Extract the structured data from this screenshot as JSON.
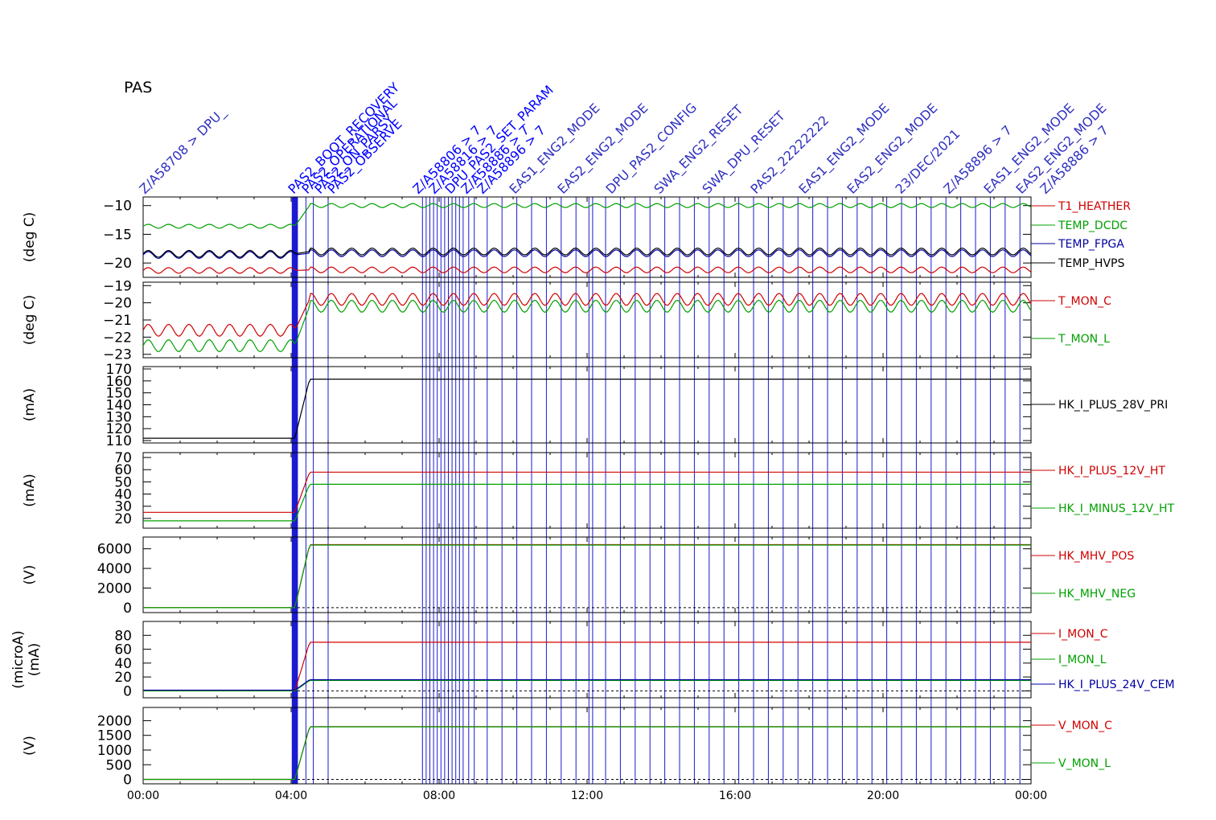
{
  "title": "PAS",
  "chart_data": [
    {
      "type": "line",
      "ylabel": "(deg C)",
      "ylim": [
        -22.5,
        -8.5
      ],
      "yticks": [
        -10,
        -15,
        -20
      ],
      "ytick_labels": [
        "−10",
        "−15",
        "−20"
      ],
      "xlim": [
        0,
        24
      ],
      "series": [
        {
          "name": "T1_HEATHER",
          "color": "#d00000",
          "pre": -21.3,
          "post": -21.2,
          "amp": 0.5
        },
        {
          "name": "TEMP_DCDC",
          "color": "#00a000",
          "pre": -13.6,
          "post": -10.0,
          "amp": 0.35
        },
        {
          "name": "TEMP_FPGA",
          "color": "#0000a0",
          "pre": -18.6,
          "post": -18.3,
          "amp": 0.6
        },
        {
          "name": "TEMP_HVPS",
          "color": "#000000",
          "pre": -18.4,
          "post": -18.0,
          "amp": 0.6
        }
      ]
    },
    {
      "type": "line",
      "ylabel": "(deg C)",
      "ylim": [
        -23.2,
        -18.8
      ],
      "yticks": [
        -19,
        -20,
        -21,
        -22,
        -23
      ],
      "ytick_labels": [
        "−19",
        "−20",
        "−21",
        "−22",
        "−23"
      ],
      "xlim": [
        0,
        24
      ],
      "series": [
        {
          "name": "T_MON_C",
          "color": "#d00000",
          "pre": -21.6,
          "post": -19.8,
          "amp": 0.35
        },
        {
          "name": "T_MON_L",
          "color": "#00a000",
          "pre": -22.5,
          "post": -20.2,
          "amp": 0.35
        }
      ]
    },
    {
      "type": "line",
      "ylabel": "(mA)",
      "ylim": [
        108,
        172
      ],
      "yticks": [
        170,
        160,
        150,
        140,
        130,
        120,
        110
      ],
      "ytick_labels": [
        "170",
        "160",
        "150",
        "140",
        "130",
        "120",
        "110"
      ],
      "xlim": [
        0,
        24
      ],
      "series": [
        {
          "name": "HK_I_PLUS_28V_PRI",
          "color": "#000000",
          "pre": 112,
          "post": 161.5,
          "amp": 0
        }
      ]
    },
    {
      "type": "line",
      "ylabel": "(mA)",
      "ylim": [
        12,
        74
      ],
      "yticks": [
        70,
        60,
        50,
        40,
        30,
        20
      ],
      "ytick_labels": [
        "70",
        "60",
        "50",
        "40",
        "30",
        "20"
      ],
      "xlim": [
        0,
        24
      ],
      "series": [
        {
          "name": "HK_I_PLUS_12V_HT",
          "color": "#d00000",
          "pre": 25,
          "post": 58,
          "amp": 0
        },
        {
          "name": "HK_I_MINUS_12V_HT",
          "color": "#00a000",
          "pre": 18,
          "post": 48,
          "amp": 0
        }
      ]
    },
    {
      "type": "line",
      "ylabel": "(V)",
      "ylim": [
        -500,
        7200
      ],
      "yticks": [
        6000,
        4000,
        2000,
        0
      ],
      "ytick_labels": [
        "6000",
        "4000",
        "2000",
        "0"
      ],
      "xlim": [
        0,
        24
      ],
      "series": [
        {
          "name": "HK_MHV_POS",
          "color": "#d00000",
          "pre": 0,
          "post": 6420,
          "amp": 0
        },
        {
          "name": "HK_MHV_NEG",
          "color": "#00a000",
          "pre": 0,
          "post": 6380,
          "amp": 0
        }
      ]
    },
    {
      "type": "line",
      "ylabel": "(microA)",
      "ylabel2": "(mA)",
      "ylim": [
        -10,
        100
      ],
      "yticks": [
        80,
        60,
        40,
        20,
        0
      ],
      "ytick_labels": [
        "80",
        "60",
        "40",
        "20",
        "0"
      ],
      "xlim": [
        0,
        24
      ],
      "series": [
        {
          "name": "I_MON_C",
          "color": "#d00000",
          "pre": 0,
          "post": 70,
          "amp": 0
        },
        {
          "name": "I_MON_L",
          "color": "#00a000",
          "pre": 0,
          "post": 15,
          "amp": 0
        },
        {
          "name": "HK_I_PLUS_24V_CEM",
          "color": "#0000a0",
          "pre": 1,
          "post": 16,
          "amp": 0
        }
      ]
    },
    {
      "type": "line",
      "ylabel": "(V)",
      "ylim": [
        -150,
        2450
      ],
      "yticks": [
        2000,
        1500,
        1000,
        500,
        0
      ],
      "ytick_labels": [
        "2000",
        "1500",
        "1000",
        "500",
        "0"
      ],
      "xlim": [
        0,
        24
      ],
      "series": [
        {
          "name": "V_MON_C",
          "color": "#d00000",
          "pre": 0,
          "post": 1800,
          "amp": 0
        },
        {
          "name": "V_MON_L",
          "color": "#00a000",
          "pre": 0,
          "post": 1790,
          "amp": 0
        }
      ]
    }
  ],
  "x_axis": {
    "ticks": [
      0,
      4,
      8,
      12,
      16,
      20,
      24
    ],
    "tick_labels": [
      "00:00",
      "04:00",
      "08:00",
      "12:00",
      "16:00",
      "20:00",
      "00:00"
    ]
  },
  "event_times": [
    4.05,
    4.1,
    4.15,
    4.4,
    4.6,
    5.0,
    7.55,
    7.65,
    7.75,
    7.85,
    7.95,
    8.05,
    8.15,
    8.25,
    8.35,
    8.45,
    8.55,
    8.65,
    8.8,
    8.95,
    9.3,
    9.7,
    10.1,
    10.5,
    10.9,
    11.3,
    11.7,
    12.05,
    12.15,
    12.5,
    12.9,
    13.3,
    13.7,
    14.1,
    14.5,
    14.9,
    15.3,
    15.7,
    16.1,
    16.5,
    16.9,
    17.3,
    17.7,
    18.1,
    18.5,
    18.9,
    19.3,
    19.7,
    20.1,
    20.5,
    20.9,
    21.3,
    21.7,
    22.1,
    22.5,
    22.9,
    23.3,
    23.7
  ],
  "annotations": [
    {
      "text": "Z/A58708 > DPU_",
      "color": "#3030c0"
    },
    {
      "text": "PAS2_BOOT_RECOVERY",
      "color": "#0000ff"
    },
    {
      "text": "PAS2_OPERATIONAL",
      "color": "#0000ff"
    },
    {
      "text": "PAS2_ON_PARSY",
      "color": "#0000ff"
    },
    {
      "text": "PAS2_OBSERVE",
      "color": "#0000ff"
    },
    {
      "text": "Z/A58806 > 7",
      "color": "#0000ff"
    },
    {
      "text": "Z/A58816 > 7",
      "color": "#0000ff"
    },
    {
      "text": "DPU_PAS2_SET_PARAM",
      "color": "#0000ff"
    },
    {
      "text": "Z/A58886 > 7",
      "color": "#0000ff"
    },
    {
      "text": "Z/A58896 > 7",
      "color": "#0000ff"
    },
    {
      "text": "EAS1_ENG2_MODE",
      "color": "#3030c0"
    },
    {
      "text": "EAS2_ENG2_MODE",
      "color": "#3030c0"
    },
    {
      "text": "DPU_PAS2_CONFIG",
      "color": "#3030c0"
    },
    {
      "text": "SWA_ENG2_RESET",
      "color": "#3030c0"
    },
    {
      "text": "SWA_DPU_RESET",
      "color": "#3030c0"
    },
    {
      "text": "PAS2_22222222",
      "color": "#3030c0"
    },
    {
      "text": "EAS1_ENG2_MODE",
      "color": "#3030c0"
    },
    {
      "text": "EAS2_ENG2_MODE",
      "color": "#3030c0"
    },
    {
      "text": "23/DEC/2021",
      "color": "#3030c0"
    },
    {
      "text": "Z/A58896 > 7",
      "color": "#3030c0"
    },
    {
      "text": "EAS1_ENG2_MODE",
      "color": "#3030c0"
    },
    {
      "text": "EAS2_ENG2_MODE",
      "color": "#3030c0"
    },
    {
      "text": "Z/A58886 > 7",
      "color": "#3030c0"
    }
  ]
}
